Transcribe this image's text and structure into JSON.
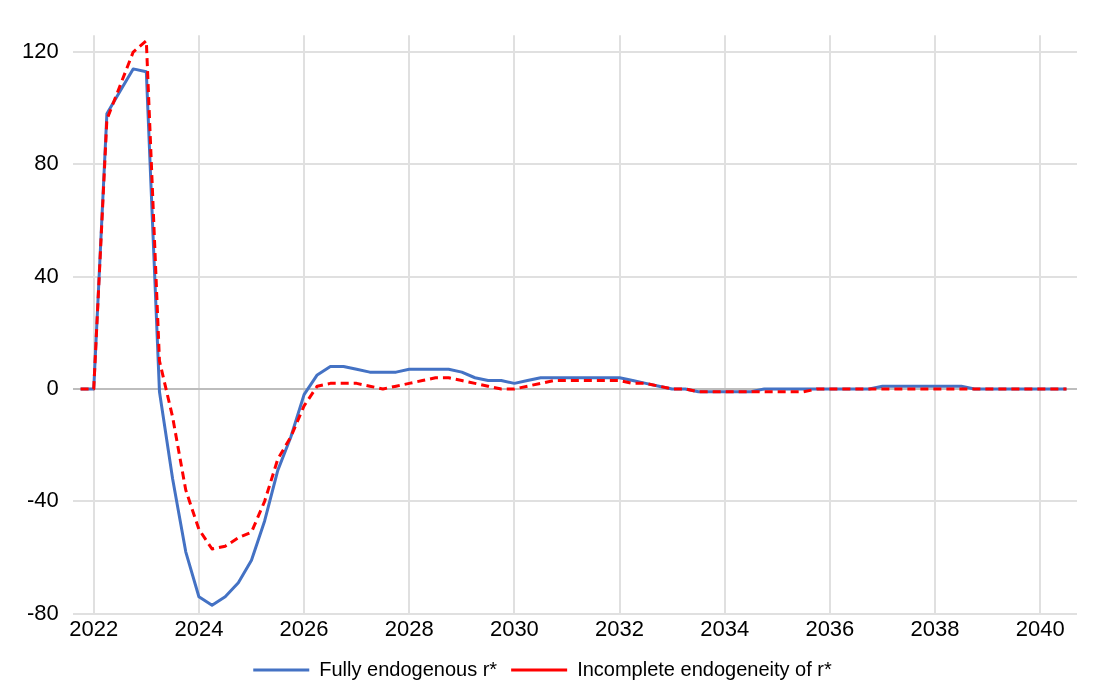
{
  "chart_data": {
    "type": "line",
    "x": [
      2021.75,
      2022,
      2022.25,
      2022.5,
      2022.75,
      2023,
      2023.25,
      2023.5,
      2023.75,
      2024,
      2024.25,
      2024.5,
      2024.75,
      2025,
      2025.25,
      2025.5,
      2025.75,
      2026,
      2026.25,
      2026.5,
      2026.75,
      2027,
      2027.25,
      2027.5,
      2027.75,
      2028,
      2028.25,
      2028.5,
      2028.75,
      2029,
      2029.25,
      2029.5,
      2029.75,
      2030,
      2030.25,
      2030.5,
      2030.75,
      2031,
      2031.25,
      2031.5,
      2031.75,
      2032,
      2032.25,
      2032.5,
      2032.75,
      2033,
      2033.25,
      2033.5,
      2033.75,
      2034,
      2034.25,
      2034.5,
      2034.75,
      2035,
      2035.25,
      2035.5,
      2035.75,
      2036,
      2036.25,
      2036.5,
      2036.75,
      2037,
      2037.25,
      2037.5,
      2037.75,
      2038,
      2038.25,
      2038.5,
      2038.75,
      2039,
      2039.25,
      2039.5,
      2039.75,
      2040,
      2040.25,
      2040.5
    ],
    "series": [
      {
        "name": "Fully endogenous r*",
        "color": "#4472c4",
        "line_style": "solid",
        "values": [
          0,
          0,
          98,
          106,
          114,
          113,
          -1,
          -32,
          -58,
          -74,
          -77,
          -74,
          -69,
          -61,
          -47,
          -29,
          -17,
          -2,
          5,
          8,
          8,
          7,
          6,
          6,
          6,
          7,
          7,
          7,
          7,
          6,
          4,
          3,
          3,
          2,
          3,
          4,
          4,
          4,
          4,
          4,
          4,
          4,
          3,
          2,
          1,
          0,
          0,
          -1,
          -1,
          -1,
          -1,
          -1,
          0,
          0,
          0,
          0,
          0,
          0,
          0,
          0,
          0,
          1,
          1,
          1,
          1,
          1,
          1,
          1,
          0,
          0,
          0,
          0,
          0,
          0,
          0,
          0
        ]
      },
      {
        "name": "Incomplete endogeneity of r*",
        "color": "#ff0000",
        "line_style": "dashed",
        "values": [
          0,
          0,
          96,
          108,
          120,
          124,
          10,
          -10,
          -36,
          -50,
          -57,
          -56,
          -53,
          -51,
          -40,
          -25,
          -17,
          -6,
          1,
          2,
          2,
          2,
          1,
          0,
          1,
          2,
          3,
          4,
          4,
          3,
          2,
          1,
          0,
          0,
          1,
          2,
          3,
          3,
          3,
          3,
          3,
          3,
          2,
          2,
          1,
          0,
          0,
          -1,
          -1,
          -1,
          -1,
          -1,
          -1,
          -1,
          -1,
          -1,
          0,
          0,
          0,
          0,
          0,
          0,
          0,
          0,
          0,
          0,
          0,
          0,
          0,
          0,
          0,
          0,
          0,
          0,
          0,
          0
        ]
      }
    ],
    "xlim": [
      2021.6,
      2040.7
    ],
    "xticks": [
      2022,
      2024,
      2026,
      2028,
      2030,
      2032,
      2034,
      2036,
      2038,
      2040
    ],
    "ylim": [
      -80,
      126
    ],
    "yticks": [
      -80,
      -40,
      0,
      40,
      80,
      120
    ],
    "grid": true,
    "legend": "bottom",
    "marker": "none"
  }
}
